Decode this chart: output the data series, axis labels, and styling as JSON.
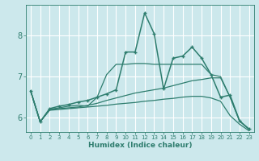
{
  "xlabel": "Humidex (Indice chaleur)",
  "bg_color": "#cce8ec",
  "grid_color": "#ffffff",
  "line_color": "#2e7d6e",
  "xlim": [
    -0.5,
    23.5
  ],
  "ylim": [
    5.65,
    8.75
  ],
  "yticks": [
    6,
    7,
    8
  ],
  "xticks": [
    0,
    1,
    2,
    3,
    4,
    5,
    6,
    7,
    8,
    9,
    10,
    11,
    12,
    13,
    14,
    15,
    16,
    17,
    18,
    19,
    20,
    21,
    22,
    23
  ],
  "series_marked": [
    6.65,
    5.9,
    6.22,
    6.28,
    6.32,
    6.38,
    6.42,
    6.5,
    6.58,
    6.68,
    7.6,
    7.6,
    8.55,
    8.05,
    6.7,
    7.45,
    7.5,
    7.72,
    7.45,
    7.05,
    6.5,
    6.55,
    5.92,
    5.72
  ],
  "series2": [
    6.65,
    5.9,
    6.2,
    6.24,
    6.28,
    6.3,
    6.28,
    6.5,
    7.05,
    7.3,
    7.3,
    7.32,
    7.32,
    7.3,
    7.3,
    7.3,
    7.3,
    7.3,
    7.3,
    7.05,
    7.0,
    6.5,
    5.92,
    5.72
  ],
  "series3": [
    6.65,
    5.9,
    6.2,
    6.22,
    6.24,
    6.26,
    6.3,
    6.35,
    6.42,
    6.48,
    6.54,
    6.6,
    6.64,
    6.68,
    6.72,
    6.78,
    6.84,
    6.9,
    6.93,
    6.97,
    6.97,
    6.5,
    5.92,
    5.72
  ],
  "series4": [
    6.65,
    5.9,
    6.18,
    6.2,
    6.22,
    6.24,
    6.26,
    6.28,
    6.3,
    6.33,
    6.35,
    6.37,
    6.4,
    6.42,
    6.45,
    6.47,
    6.5,
    6.52,
    6.52,
    6.48,
    6.4,
    6.05,
    5.84,
    5.68
  ]
}
